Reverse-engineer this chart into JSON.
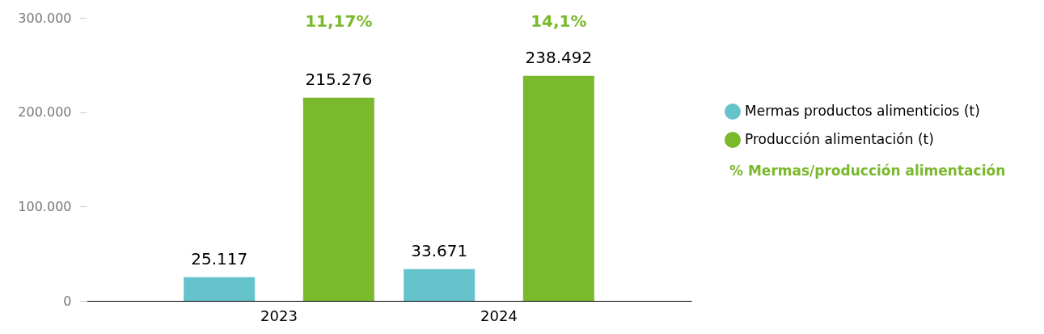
{
  "chart_data": {
    "type": "bar",
    "categories": [
      "2023",
      "2024"
    ],
    "series": [
      {
        "name": "Mermas productos alimenticios (t)",
        "color": "#66c3cb",
        "values": [
          25117,
          33671
        ],
        "value_labels": [
          "25.117",
          "33.671"
        ]
      },
      {
        "name": "Producción alimentación (t)",
        "color": "#7ab82c",
        "values": [
          215276,
          238492
        ],
        "value_labels": [
          "215.276",
          "238.492"
        ]
      }
    ],
    "ylim": [
      0,
      300000
    ],
    "yticks": [
      0,
      {
        "value": 100000,
        "label": "100.000"
      },
      {
        "value": 200000,
        "label": "200.000"
      },
      {
        "value": 300000,
        "label": "300.000"
      }
    ],
    "grid": false,
    "legend": "right",
    "annotations": [
      "11,17%",
      "14,1%",
      "% Mermas/producción alimentación"
    ]
  }
}
